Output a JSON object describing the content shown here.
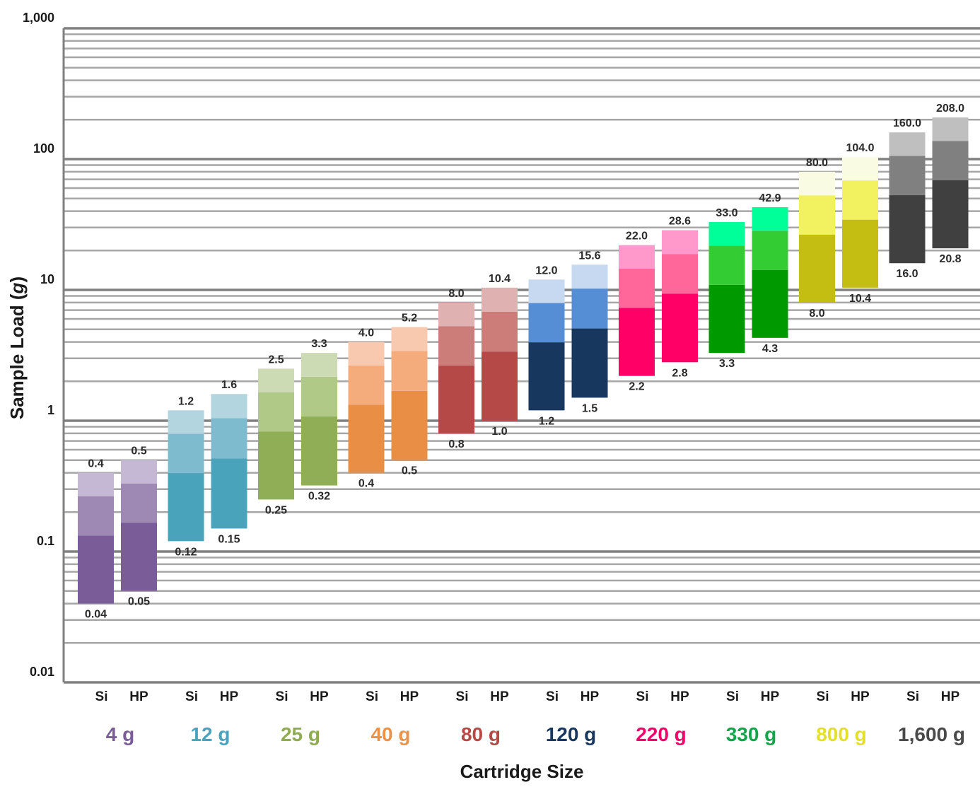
{
  "chart_data": {
    "type": "bar",
    "subtype": "floating-range-bar",
    "title": "",
    "xlabel": "Cartridge Size",
    "ylabel_prefix": "Sample Load (",
    "ylabel_unit": "g",
    "ylabel_suffix": ")",
    "yscale": "log",
    "ylim": [
      0.01,
      1000
    ],
    "yticks": [
      {
        "value": 1000,
        "label": "1,000"
      },
      {
        "value": 100,
        "label": "100"
      },
      {
        "value": 10,
        "label": "10"
      },
      {
        "value": 1,
        "label": "1"
      },
      {
        "value": 0.1,
        "label": "0.1"
      },
      {
        "value": 0.01,
        "label": "0.01"
      }
    ],
    "grid": "major and minor horizontal",
    "legend": "none",
    "bar_style": "each bar split into three tonal segments (dark bottom, medium middle, light top)",
    "groups": [
      {
        "size": "4 g",
        "color": "#7a5c99",
        "shades": [
          "#7a5c99",
          "#9e88b4",
          "#c5b8d5"
        ],
        "bars": [
          {
            "type": "Si",
            "min": 0.04,
            "max": 0.4,
            "min_label": "0.04",
            "max_label": "0.4"
          },
          {
            "type": "HP",
            "min": 0.05,
            "max": 0.5,
            "min_label": "0.05",
            "max_label": "0.5"
          }
        ]
      },
      {
        "size": "12 g",
        "color": "#4aa3bc",
        "shades": [
          "#48a3bb",
          "#7fbbcf",
          "#b3d5e0"
        ],
        "bars": [
          {
            "type": "Si",
            "min": 0.12,
            "max": 1.2,
            "min_label": "0.12",
            "max_label": "1.2"
          },
          {
            "type": "HP",
            "min": 0.15,
            "max": 1.6,
            "min_label": "0.15",
            "max_label": "1.6"
          }
        ]
      },
      {
        "size": "25 g",
        "color": "#8fac53",
        "shades": [
          "#8fae55",
          "#b0c987",
          "#ccdbb3"
        ],
        "bars": [
          {
            "type": "Si",
            "min": 0.25,
            "max": 2.5,
            "min_label": "0.25",
            "max_label": "2.5"
          },
          {
            "type": "HP",
            "min": 0.32,
            "max": 3.3,
            "min_label": "0.32",
            "max_label": "3.3"
          }
        ]
      },
      {
        "size": "40 g",
        "color": "#e8924a",
        "shades": [
          "#e88e45",
          "#f4ac7d",
          "#f8c9ae"
        ],
        "bars": [
          {
            "type": "Si",
            "min": 0.4,
            "max": 4.0,
            "min_label": "0.4",
            "max_label": "4.0"
          },
          {
            "type": "HP",
            "min": 0.5,
            "max": 5.2,
            "min_label": "0.5",
            "max_label": "5.2"
          }
        ]
      },
      {
        "size": "80 g",
        "color": "#b44a45",
        "shades": [
          "#b54947",
          "#cc7d7a",
          "#dfb1b0"
        ],
        "bars": [
          {
            "type": "Si",
            "min": 0.8,
            "max": 8.0,
            "min_label": "0.8",
            "max_label": "8.0"
          },
          {
            "type": "HP",
            "min": 1.0,
            "max": 10.4,
            "min_label": "1.0",
            "max_label": "10.4"
          }
        ]
      },
      {
        "size": "120 g",
        "color": "#17375e",
        "shades": [
          "#17375e",
          "#558ed5",
          "#c6d9f1"
        ],
        "bars": [
          {
            "type": "Si",
            "min": 1.2,
            "max": 12.0,
            "min_label": "1.2",
            "max_label": "12.0"
          },
          {
            "type": "HP",
            "min": 1.5,
            "max": 15.6,
            "min_label": "1.5",
            "max_label": "15.6"
          }
        ]
      },
      {
        "size": "220 g",
        "color": "#f5006a",
        "shades": [
          "#ff0066",
          "#ff6699",
          "#ff99cc"
        ],
        "bars": [
          {
            "type": "Si",
            "min": 2.2,
            "max": 22.0,
            "min_label": "2.2",
            "max_label": "22.0"
          },
          {
            "type": "HP",
            "min": 2.8,
            "max": 28.6,
            "min_label": "2.8",
            "max_label": "28.6"
          }
        ]
      },
      {
        "size": "330 g",
        "color": "#12a54a",
        "shades": [
          "#009900",
          "#33cc33",
          "#00ff99"
        ],
        "bars": [
          {
            "type": "Si",
            "min": 3.3,
            "max": 33.0,
            "min_label": "3.3",
            "max_label": "33.0"
          },
          {
            "type": "HP",
            "min": 4.3,
            "max": 42.9,
            "min_label": "4.3",
            "max_label": "42.9"
          }
        ]
      },
      {
        "size": "800 g",
        "color": "#e3df2a",
        "shades": [
          "#c4bd12",
          "#f2f260",
          "#f9fbe2"
        ],
        "bars": [
          {
            "type": "Si",
            "min": 8.0,
            "max": 80.0,
            "min_label": "8.0",
            "max_label": "80.0"
          },
          {
            "type": "HP",
            "min": 10.4,
            "max": 104.0,
            "min_label": "10.4",
            "max_label": "104.0"
          }
        ]
      },
      {
        "size": "1,600 g",
        "color": "#4a4a4a",
        "shades": [
          "#404040",
          "#808080",
          "#bfbfbf"
        ],
        "bars": [
          {
            "type": "Si",
            "min": 16.0,
            "max": 160.0,
            "min_label": "16.0",
            "max_label": "160.0"
          },
          {
            "type": "HP",
            "min": 20.8,
            "max": 208.0,
            "min_label": "20.8",
            "max_label": "208.0"
          }
        ]
      }
    ]
  }
}
